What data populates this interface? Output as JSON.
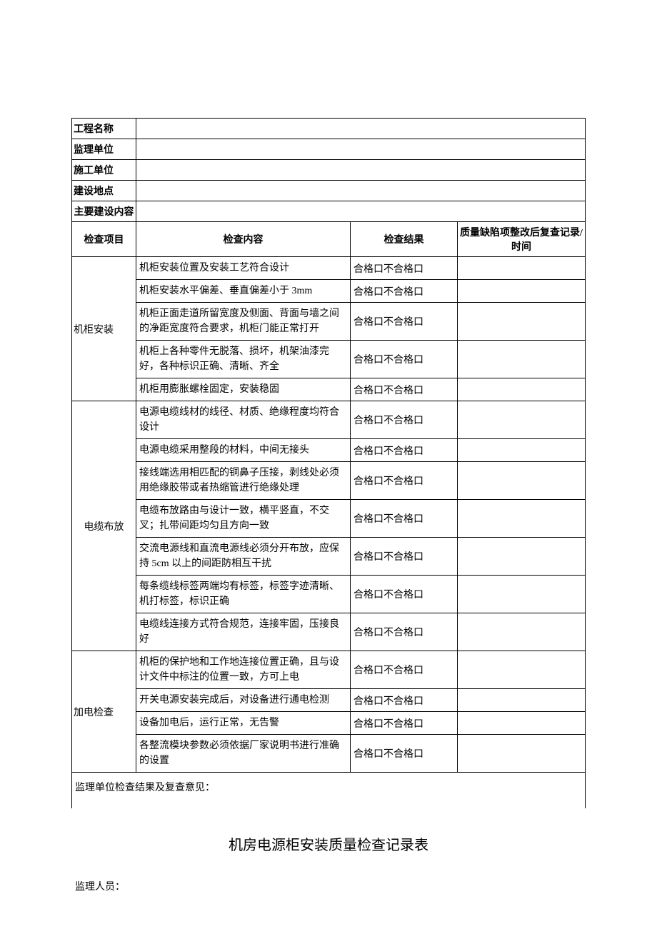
{
  "meta_labels": {
    "project_name": "工程名称",
    "supervision_unit": "监理单位",
    "construction_unit": "施工单位",
    "construction_location": "建设地点",
    "main_content": "主要建设内容"
  },
  "headers": {
    "check_item": "检查项目",
    "check_content": "检查内容",
    "check_result": "检查结果",
    "record": "质量缺陷项整改后复查记录/时间"
  },
  "result_text": "合格口不合格口",
  "sections": [
    {
      "category": "机柜安装",
      "align": "left",
      "items": [
        "机柜安装位置及安装工艺符合设计",
        "机柜安装水平偏差、垂直偏差小于 3mm",
        "机柜正面走道所留宽度及侧面、背面与墙之间的净距宽度符合要求，机柜门能正常打开",
        "机柜上各种零件无脱落、损坏，机架油漆完好，各种标识正确、清晰、齐全",
        "机柜用膨胀螺栓固定，安装稳固"
      ]
    },
    {
      "category": "电缆布放",
      "align": "center",
      "items": [
        "电源电缆线材的线径、材质、绝缘程度均符合设计",
        "电源电缆采用整段的材料，中间无接头",
        "接线端选用相匹配的铜鼻子压接，剥线处必须用绝缘胶带或者热缩管进行绝缘处理",
        "电缆布放路由与设计一致，横平竖直，不交叉；扎带间距均匀且方向一致",
        "交流电源线和直流电源线必须分开布放，应保持 5cm 以上的间距防相互干扰",
        "每条缆线标签两端均有标签，标签字迹清晰、机打标签，标识正确",
        "电缆线连接方式符合规范，连接牢固，压接良好"
      ]
    },
    {
      "category": "加电检查",
      "align": "left",
      "items": [
        "机柜的保护地和工作地连接位置正确，且与设计文件中标注的位置一致，方可上电",
        "开关电源安装完成后，对设备进行通电检测",
        "设备加电后，运行正常，无告警",
        "各整流模块参数必须依据厂家说明书进行准确的设置"
      ]
    }
  ],
  "footer_label": "监理单位检查结果及复查意见：",
  "page_title": "机房电源柜安装质量检查记录表",
  "inspector_label": "监理人员："
}
